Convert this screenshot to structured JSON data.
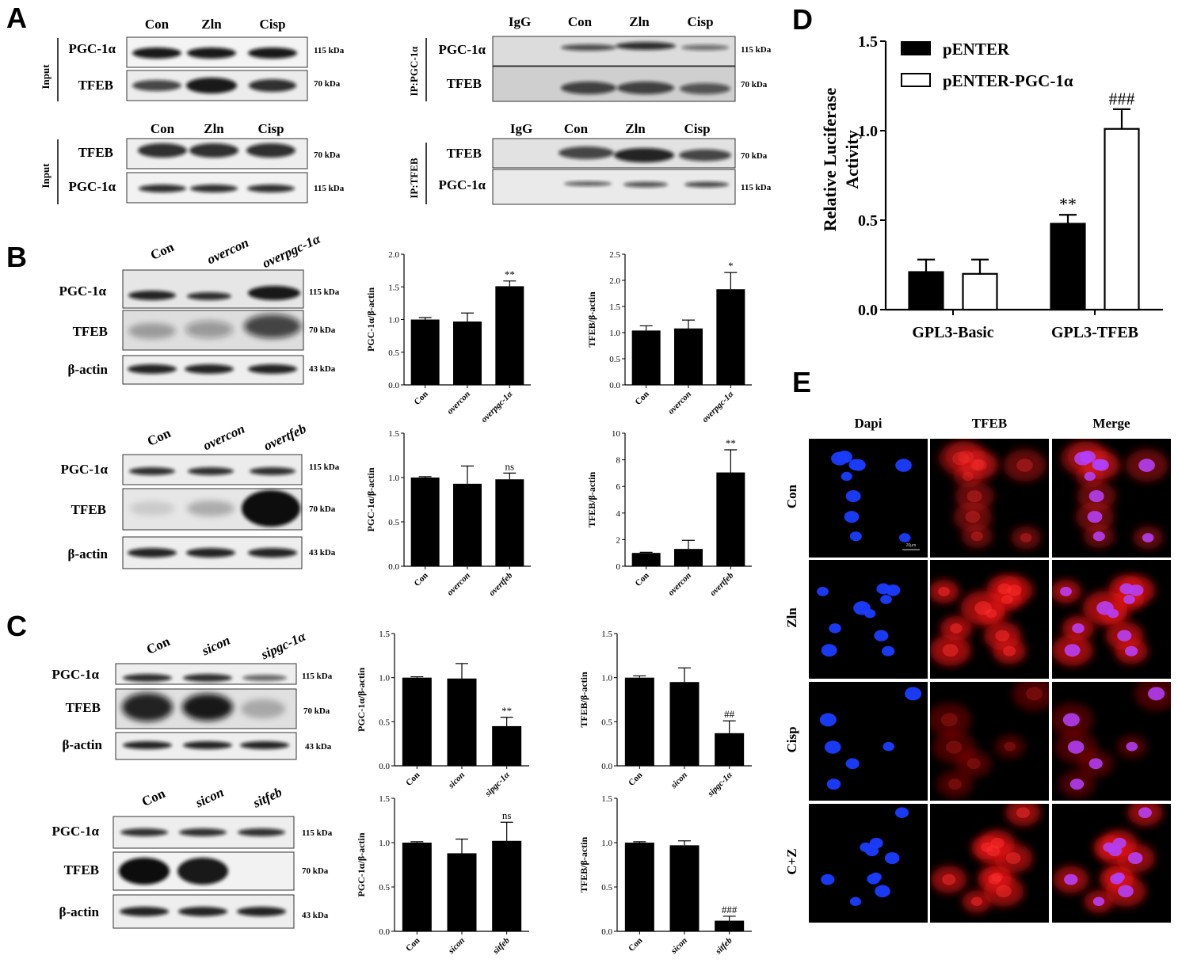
{
  "panels": {
    "A": "A",
    "B": "B",
    "C": "C",
    "D": "D",
    "E": "E"
  },
  "units": {
    "k115": "115 kDa",
    "k70": "70 kDa",
    "k43": "43 kDa"
  },
  "lanes": {
    "con": "Con",
    "zln": "Zln",
    "cisp": "Cisp",
    "igg": "IgG",
    "overcon": "overcon",
    "overpgc": "overpgc-1α",
    "overtfeb": "overtfeb",
    "sicon": "sicon",
    "sipgc": "sipgc-1α",
    "sitfeb": "sitfeb"
  },
  "proteins": {
    "pgc": "PGC-1α",
    "tfeb": "TFEB",
    "actin": "β-actin"
  },
  "side_labels": {
    "input": "Input",
    "ip_pgc": "IP:PGC-1α",
    "ip_tfeb": "IP:TFEB"
  },
  "if": {
    "columns": [
      "Dapi",
      "TFEB",
      "Merge"
    ],
    "rows": [
      "Con",
      "Zln",
      "Cisp",
      "C+Z"
    ],
    "scale_bar": "20μm"
  },
  "chart_data": [
    {
      "id": "b1",
      "type": "bar",
      "categories": [
        "Con",
        "overcon",
        "overpgc-1α"
      ],
      "values": [
        1.0,
        0.97,
        1.51
      ],
      "errors": [
        0.03,
        0.13,
        0.08
      ],
      "annotations": [
        "",
        "",
        "**"
      ],
      "ylabel": "PGC-1α/β-actin",
      "ylim": [
        0,
        2.0
      ],
      "yticks": [
        "0.0",
        "0.5",
        "1.0",
        "1.5",
        "2.0"
      ],
      "color": "#000000"
    },
    {
      "id": "b2",
      "type": "bar",
      "categories": [
        "Con",
        "overcon",
        "overpgc-1α"
      ],
      "values": [
        1.04,
        1.08,
        1.83
      ],
      "errors": [
        0.09,
        0.16,
        0.32
      ],
      "annotations": [
        "",
        "",
        "*"
      ],
      "ylabel": "TFEB/β-actin",
      "ylim": [
        0,
        2.5
      ],
      "yticks": [
        "0.0",
        "0.5",
        "1.0",
        "1.5",
        "2.0",
        "2.5"
      ],
      "color": "#000000"
    },
    {
      "id": "b3",
      "type": "bar",
      "categories": [
        "Con",
        "overcon",
        "overtfeb"
      ],
      "values": [
        1.0,
        0.93,
        0.98
      ],
      "errors": [
        0.01,
        0.2,
        0.07
      ],
      "annotations": [
        "",
        "",
        "ns"
      ],
      "ylabel": "PGC-1α/β-actin",
      "ylim": [
        0,
        1.5
      ],
      "yticks": [
        "0.0",
        "0.5",
        "1.0",
        "1.5"
      ],
      "color": "#000000"
    },
    {
      "id": "b4",
      "type": "bar",
      "categories": [
        "Con",
        "overcon",
        "overtfeb"
      ],
      "values": [
        1.0,
        1.3,
        7.05
      ],
      "errors": [
        0.05,
        0.65,
        1.7
      ],
      "annotations": [
        "",
        "",
        "**"
      ],
      "ylabel": "TFEB/β-actin",
      "ylim": [
        0,
        10
      ],
      "yticks": [
        "0",
        "2",
        "4",
        "6",
        "8",
        "10"
      ],
      "color": "#000000"
    },
    {
      "id": "c1",
      "type": "bar",
      "categories": [
        "Con",
        "sicon",
        "sipgc-1α"
      ],
      "values": [
        1.0,
        0.99,
        0.45
      ],
      "errors": [
        0.01,
        0.17,
        0.1
      ],
      "annotations": [
        "",
        "",
        "**"
      ],
      "ylabel": "PGC-1α/β-actin",
      "ylim": [
        0,
        1.5
      ],
      "yticks": [
        "0.0",
        "0.5",
        "1.0",
        "1.5"
      ],
      "color": "#000000"
    },
    {
      "id": "c2",
      "type": "bar",
      "categories": [
        "Con",
        "sicon",
        "sipgc-1α"
      ],
      "values": [
        1.0,
        0.95,
        0.37
      ],
      "errors": [
        0.02,
        0.16,
        0.14
      ],
      "annotations": [
        "",
        "",
        "##"
      ],
      "ylabel": "TFEB/β-actin",
      "ylim": [
        0,
        1.5
      ],
      "yticks": [
        "0.0",
        "0.5",
        "1.0",
        "1.5"
      ],
      "color": "#000000"
    },
    {
      "id": "c3",
      "type": "bar",
      "categories": [
        "Con",
        "sicon",
        "sitfeb"
      ],
      "values": [
        1.0,
        0.88,
        1.02
      ],
      "errors": [
        0.01,
        0.16,
        0.21
      ],
      "annotations": [
        "",
        "",
        "ns"
      ],
      "ylabel": "PGC-1α/β-actin",
      "ylim": [
        0,
        1.5
      ],
      "yticks": [
        "0.0",
        "0.5",
        "1.0",
        "1.5"
      ],
      "color": "#000000"
    },
    {
      "id": "c4",
      "type": "bar",
      "categories": [
        "Con",
        "sicon",
        "sitfeb"
      ],
      "values": [
        1.0,
        0.97,
        0.12
      ],
      "errors": [
        0.01,
        0.05,
        0.05
      ],
      "annotations": [
        "",
        "",
        "###"
      ],
      "ylabel": "TFEB/β-actin",
      "ylim": [
        0,
        1.5
      ],
      "yticks": [
        "0.0",
        "0.5",
        "1.0",
        "1.5"
      ],
      "color": "#000000"
    },
    {
      "id": "d",
      "type": "bar",
      "categories": [
        "GPL3-Basic",
        "GPL3-TFEB"
      ],
      "series": [
        {
          "name": "pENTER",
          "color": "#000000",
          "values": [
            0.21,
            0.48
          ],
          "errors": [
            0.07,
            0.05
          ],
          "annotations": [
            "",
            "**"
          ]
        },
        {
          "name": "pENTER-PGC-1α",
          "color": "#ffffff",
          "values": [
            0.2,
            1.01
          ],
          "errors": [
            0.08,
            0.11
          ],
          "annotations": [
            "",
            "###"
          ]
        }
      ],
      "ylabel": "Relative Luciferase Activity",
      "ylim": [
        0,
        1.5
      ],
      "yticks": [
        "0.0",
        "0.5",
        "1.0",
        "1.5"
      ],
      "legend": "top-left"
    }
  ]
}
